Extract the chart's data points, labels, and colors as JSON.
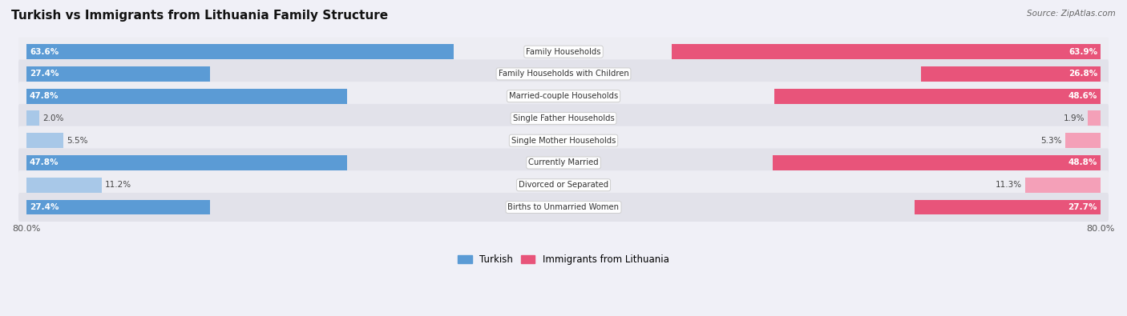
{
  "title": "Turkish vs Immigrants from Lithuania Family Structure",
  "source": "Source: ZipAtlas.com",
  "categories": [
    "Family Households",
    "Family Households with Children",
    "Married-couple Households",
    "Single Father Households",
    "Single Mother Households",
    "Currently Married",
    "Divorced or Separated",
    "Births to Unmarried Women"
  ],
  "turkish_values": [
    63.6,
    27.4,
    47.8,
    2.0,
    5.5,
    47.8,
    11.2,
    27.4
  ],
  "lithuania_values": [
    63.9,
    26.8,
    48.6,
    1.9,
    5.3,
    48.8,
    11.3,
    27.7
  ],
  "turkish_color_large": "#5b9bd5",
  "turkish_color_small": "#a8c8e8",
  "lithuania_color_large": "#e8547a",
  "lithuania_color_small": "#f4a0b8",
  "x_max": 80.0,
  "bar_height": 0.68,
  "row_bg_light": "#ededf3",
  "row_bg_dark": "#e2e2ea",
  "background_color": "#f0f0f7",
  "legend_turkish": "Turkish",
  "legend_lithuania": "Immigrants from Lithuania",
  "small_threshold": 15.0
}
